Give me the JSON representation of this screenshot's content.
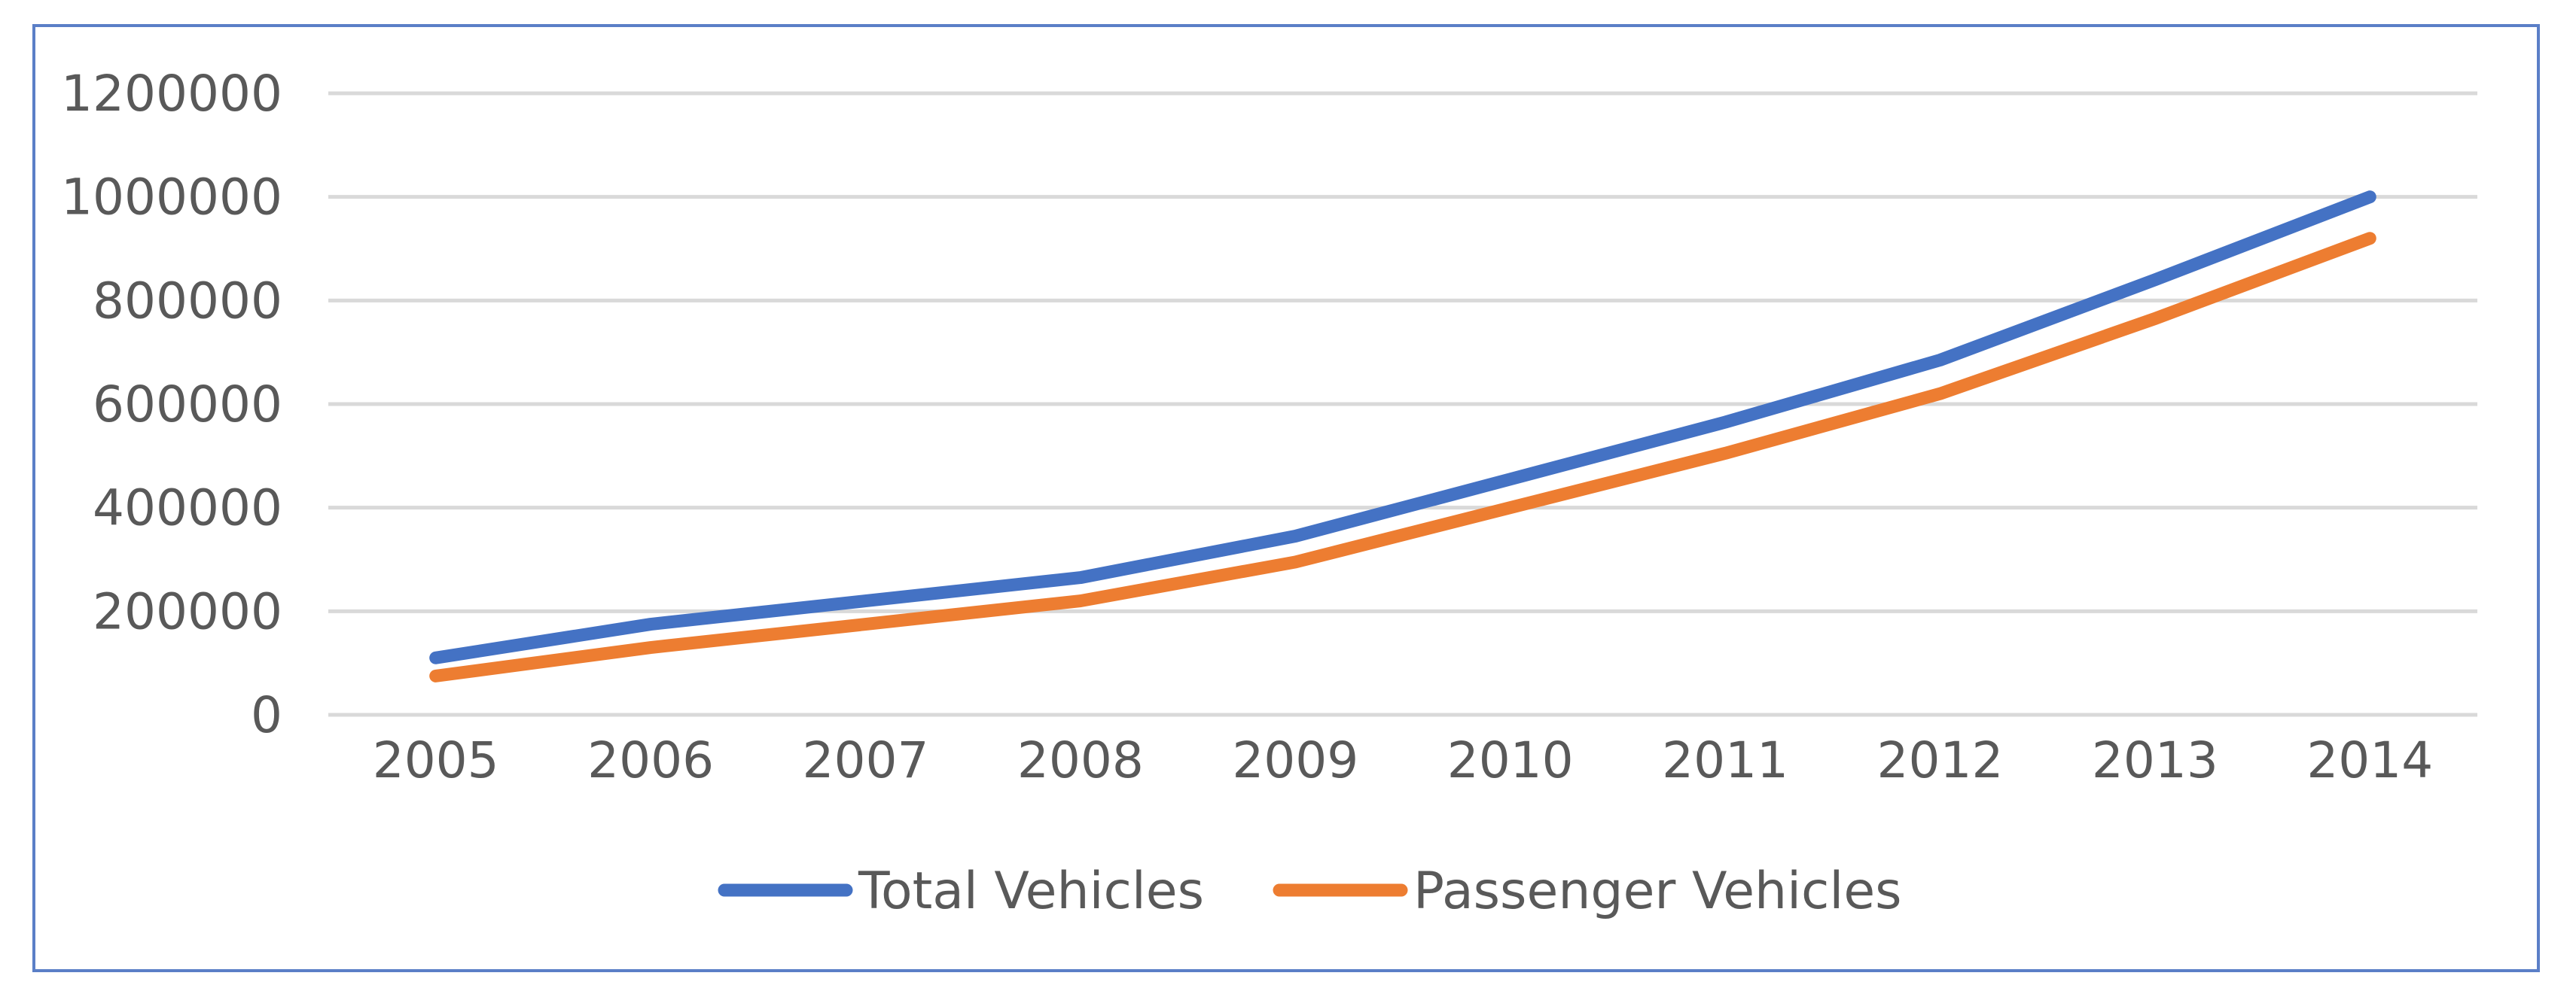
{
  "chart_data": {
    "type": "line",
    "title": "",
    "xlabel": "",
    "ylabel": "",
    "categories": [
      "2005",
      "2006",
      "2007",
      "2008",
      "2009",
      "2010",
      "2011",
      "2012",
      "2013",
      "2014"
    ],
    "ylim": [
      0,
      1200000
    ],
    "yticks": [
      0,
      200000,
      400000,
      600000,
      800000,
      1000000,
      1200000
    ],
    "ytick_labels": [
      "0",
      "200000",
      "400000",
      "600000",
      "800000",
      "1000000",
      "1200000"
    ],
    "grid": true,
    "legend_position": "bottom",
    "series": [
      {
        "name": "Total Vehicles",
        "color": "#4472c4",
        "values": [
          110000,
          175000,
          220000,
          265000,
          345000,
          455000,
          565000,
          685000,
          840000,
          1000000
        ]
      },
      {
        "name": "Passenger Vehicles",
        "color": "#ed7d31",
        "values": [
          75000,
          130000,
          175000,
          220000,
          295000,
          400000,
          505000,
          620000,
          765000,
          920000
        ]
      }
    ]
  }
}
